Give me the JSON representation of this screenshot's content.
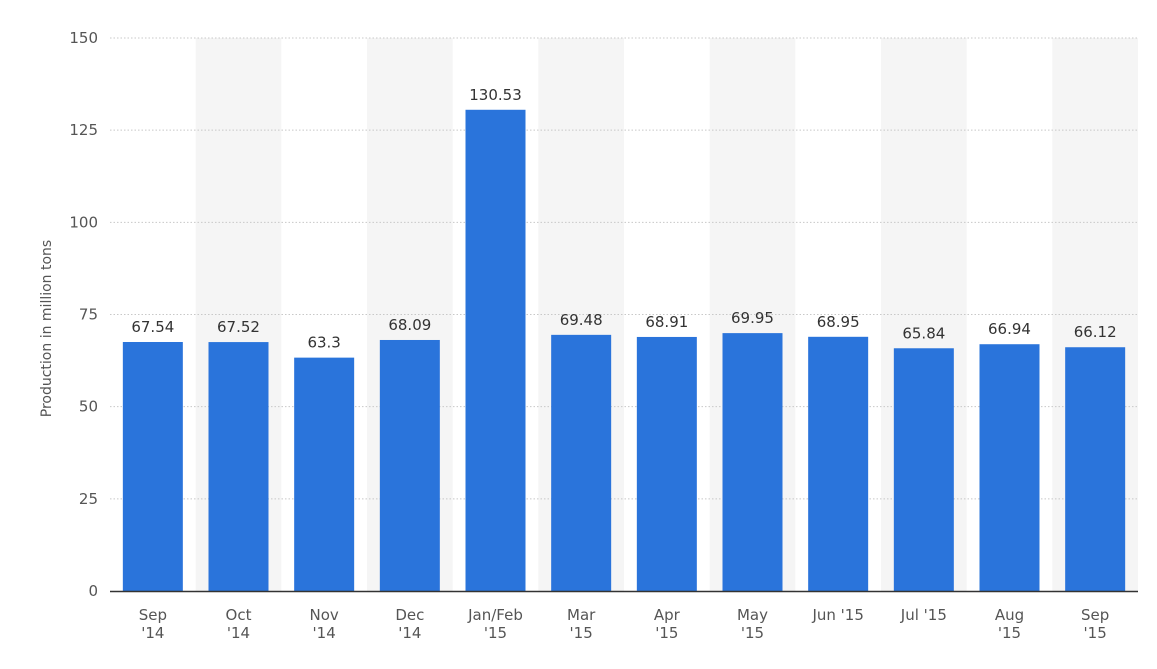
{
  "chart_data": {
    "type": "bar",
    "title": "",
    "xlabel": "",
    "ylabel": "Production in million tons",
    "categories": [
      [
        "Sep",
        "'14"
      ],
      [
        "Oct",
        "'14"
      ],
      [
        "Nov",
        "'14"
      ],
      [
        "Dec",
        "'14"
      ],
      [
        "Jan/Feb",
        "'15"
      ],
      [
        "Mar",
        "'15"
      ],
      [
        "Apr",
        "'15"
      ],
      [
        "May",
        "'15"
      ],
      [
        "Jun '15"
      ],
      [
        "Jul '15"
      ],
      [
        "Aug",
        "'15"
      ],
      [
        "Sep",
        "'15"
      ]
    ],
    "values": [
      67.54,
      67.52,
      63.3,
      68.09,
      130.53,
      69.48,
      68.91,
      69.95,
      68.95,
      65.84,
      66.94,
      66.12
    ],
    "value_labels": [
      "67.54",
      "67.52",
      "63.3",
      "68.09",
      "130.53",
      "69.48",
      "68.91",
      "69.95",
      "68.95",
      "65.84",
      "66.94",
      "66.12"
    ],
    "yticks": [
      0,
      25,
      50,
      75,
      100,
      125,
      150
    ],
    "ylim": [
      0,
      150
    ],
    "grid": true,
    "alternating_column_bands": true,
    "colors": {
      "bar": "#2a74db",
      "band": "#f5f5f5",
      "grid": "#c8c8c8",
      "axis": "#333333"
    }
  }
}
